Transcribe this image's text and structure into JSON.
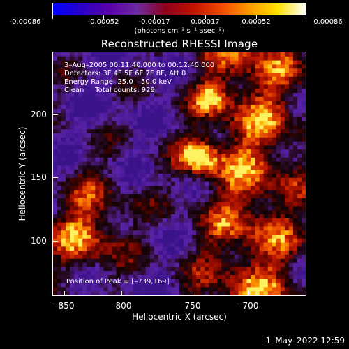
{
  "colorbar": {
    "ticks": [
      "-0.00086",
      "-0.00052",
      "-0.00017",
      "0.00017",
      "0.00052",
      "0.00086"
    ],
    "units": "(photons cm⁻² s⁻¹ asec⁻²)",
    "gradient_colors": [
      "#0000ff",
      "#2a00c8",
      "#5a00a8",
      "#6c2aa0",
      "#8d001a",
      "#c01100",
      "#f24a00",
      "#ff9a00",
      "#ffe200",
      "#ffffff"
    ]
  },
  "title": "Reconstructed RHESSI Image",
  "overlay": {
    "time": "3–Aug–2005 00:11:40.000 to 00:12:40.000",
    "detectors": "Detectors: 3F 4F 5F 6F 7F 8F, Att 0",
    "energy": "Energy Range: 25.0 – 50.0 keV",
    "clean": "Clean     Total counts: 929.",
    "peak": "Position of Peak = [–739,169]"
  },
  "axes": {
    "x_title": "Heliocentric X (arcsec)",
    "y_title": "Heliocentric Y (arcsec)",
    "x_ticks": [
      "–850",
      "–800",
      "–750",
      "–700"
    ],
    "y_ticks": [
      "200",
      "150",
      "100"
    ]
  },
  "timestamp": "1–May–2022 12:59"
}
